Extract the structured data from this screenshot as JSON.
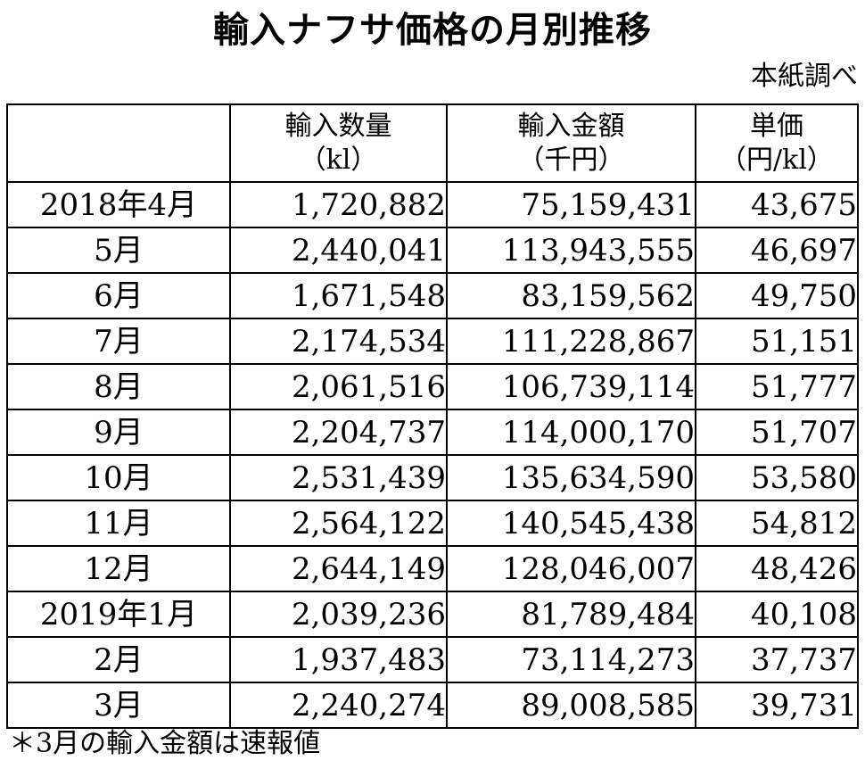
{
  "title": "輸入ナフサ価格の月別推移",
  "source": "本紙調べ",
  "table": {
    "headers": [
      {
        "line1": "",
        "line2": ""
      },
      {
        "line1": "輸入数量",
        "line2": "（kl）"
      },
      {
        "line1": "輸入金額",
        "line2": "（千円）"
      },
      {
        "line1": "単価",
        "line2": "（円/kl）"
      }
    ],
    "rows": [
      {
        "month": "2018年4月",
        "quantity": "1,720,882",
        "amount": "75,159,431",
        "price": "43,675"
      },
      {
        "month": "5月",
        "quantity": "2,440,041",
        "amount": "113,943,555",
        "price": "46,697"
      },
      {
        "month": "6月",
        "quantity": "1,671,548",
        "amount": "83,159,562",
        "price": "49,750"
      },
      {
        "month": "7月",
        "quantity": "2,174,534",
        "amount": "111,228,867",
        "price": "51,151"
      },
      {
        "month": "8月",
        "quantity": "2,061,516",
        "amount": "106,739,114",
        "price": "51,777"
      },
      {
        "month": "9月",
        "quantity": "2,204,737",
        "amount": "114,000,170",
        "price": "51,707"
      },
      {
        "month": "10月",
        "quantity": "2,531,439",
        "amount": "135,634,590",
        "price": "53,580"
      },
      {
        "month": "11月",
        "quantity": "2,564,122",
        "amount": "140,545,438",
        "price": "54,812"
      },
      {
        "month": "12月",
        "quantity": "2,644,149",
        "amount": "128,046,007",
        "price": "48,426"
      },
      {
        "month": "2019年1月",
        "quantity": "2,039,236",
        "amount": "81,789,484",
        "price": "40,108"
      },
      {
        "month": "2月",
        "quantity": "1,937,483",
        "amount": "73,114,273",
        "price": "37,737"
      },
      {
        "month": "3月",
        "quantity": "2,240,274",
        "amount": "89,008,585",
        "price": "39,731"
      }
    ]
  },
  "note": "＊3月の輸入金額は速報値"
}
